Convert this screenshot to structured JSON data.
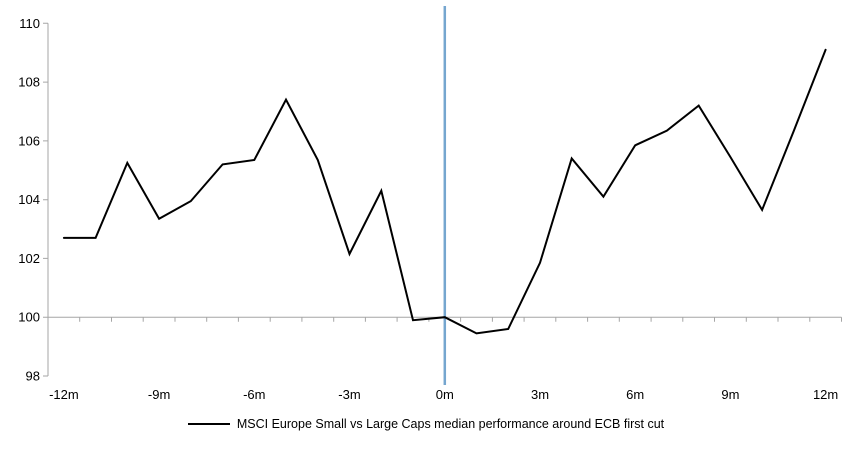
{
  "chart_data": {
    "type": "line",
    "title": "",
    "xlabel": "",
    "ylabel": "",
    "x_months": [
      -12,
      -11,
      -10,
      -9,
      -8,
      -7,
      -6,
      -5,
      -4,
      -3,
      -2,
      -1,
      0,
      1,
      2,
      3,
      4,
      5,
      6,
      7,
      8,
      9,
      10,
      11,
      12
    ],
    "xtick_every": 3,
    "xtick_labels": [
      "-12m",
      "-9m",
      "-6m",
      "-3m",
      "0m",
      "3m",
      "6m",
      "9m",
      "12m"
    ],
    "yticks": [
      98,
      100,
      102,
      104,
      106,
      108,
      110
    ],
    "ylim": [
      98,
      110
    ],
    "baseline_y": 100,
    "event_line_x": 0,
    "grid": "off",
    "legend_position": "bottom",
    "series": [
      {
        "name": "MSCI Europe Small vs Large Caps median performance around ECB first cut",
        "color": "#000000",
        "values": [
          102.7,
          102.7,
          105.25,
          103.35,
          103.95,
          105.2,
          105.35,
          107.4,
          105.35,
          102.15,
          104.3,
          99.9,
          100.0,
          99.45,
          99.6,
          101.85,
          105.4,
          104.1,
          105.85,
          106.35,
          107.2,
          105.45,
          103.65,
          106.35,
          109.1
        ]
      }
    ],
    "colors": {
      "axis": "#A6A6A6",
      "gridline": "#A6A6A6",
      "event_line": "#75A6CF",
      "text": "#000000"
    }
  }
}
